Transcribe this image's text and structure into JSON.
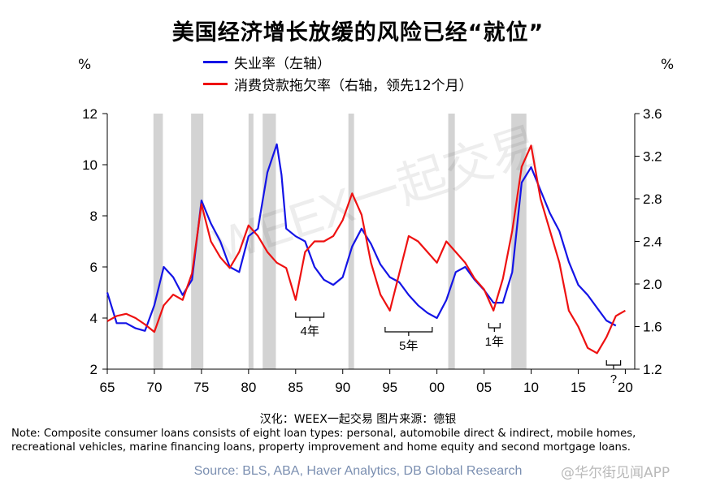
{
  "title": "美国经济增长放缓的风险已经“就位”",
  "left_unit": "%",
  "right_unit": "%",
  "credit": "汉化：WEEX一起交易   图片来源：德银",
  "note": "Note: Composite consumer loans consists of eight loan types: personal, automobile direct & indirect, mobile homes, recreational vehicles, marine financing loans, property improvement and home equity and second mortgage loans.",
  "source": "Source: BLS, ABA, Haver Analytics, DB Global Research",
  "watermark_main": "WEEX一起交易",
  "watermark_app": "@华尔街见闻APP",
  "colors": {
    "unemployment": "#1414e6",
    "delinquency": "#ee1111",
    "recession": "#d3d3d3"
  },
  "chart_data": {
    "type": "line",
    "x_ticks": [
      "65",
      "70",
      "75",
      "80",
      "85",
      "90",
      "95",
      "00",
      "05",
      "10",
      "15",
      "20"
    ],
    "xlim": [
      1965,
      2021
    ],
    "ylim_left": [
      2,
      12
    ],
    "yticks_left": [
      "2",
      "4",
      "6",
      "8",
      "10",
      "12"
    ],
    "ylim_right": [
      1.2,
      3.6
    ],
    "yticks_right": [
      "1.2",
      "1.6",
      "2.0",
      "2.4",
      "2.8",
      "3.2",
      "3.6"
    ],
    "recessions": [
      [
        1969.9,
        1970.9
      ],
      [
        1973.9,
        1975.2
      ],
      [
        1980.0,
        1980.5
      ],
      [
        1981.5,
        1982.9
      ],
      [
        1990.6,
        1991.2
      ],
      [
        2001.2,
        2001.9
      ],
      [
        2007.9,
        2009.5
      ]
    ],
    "series": [
      {
        "name": "失业率（左轴）",
        "axis": "left",
        "points": [
          [
            1965,
            5.0
          ],
          [
            1966,
            3.8
          ],
          [
            1967,
            3.8
          ],
          [
            1968,
            3.6
          ],
          [
            1969,
            3.5
          ],
          [
            1970,
            4.5
          ],
          [
            1971,
            6.0
          ],
          [
            1972,
            5.6
          ],
          [
            1973,
            4.9
          ],
          [
            1974,
            5.5
          ],
          [
            1975,
            8.6
          ],
          [
            1976,
            7.7
          ],
          [
            1977,
            7.0
          ],
          [
            1978,
            6.0
          ],
          [
            1979,
            5.8
          ],
          [
            1980,
            7.2
          ],
          [
            1981,
            7.5
          ],
          [
            1982,
            9.7
          ],
          [
            1983,
            10.8
          ],
          [
            1983.5,
            9.6
          ],
          [
            1984,
            7.5
          ],
          [
            1985,
            7.2
          ],
          [
            1986,
            7.0
          ],
          [
            1987,
            6.0
          ],
          [
            1988,
            5.5
          ],
          [
            1989,
            5.3
          ],
          [
            1990,
            5.6
          ],
          [
            1991,
            6.8
          ],
          [
            1992,
            7.5
          ],
          [
            1993,
            6.9
          ],
          [
            1994,
            6.1
          ],
          [
            1995,
            5.6
          ],
          [
            1996,
            5.4
          ],
          [
            1997,
            4.9
          ],
          [
            1998,
            4.5
          ],
          [
            1999,
            4.2
          ],
          [
            2000,
            4.0
          ],
          [
            2001,
            4.7
          ],
          [
            2002,
            5.8
          ],
          [
            2003,
            6.0
          ],
          [
            2004,
            5.5
          ],
          [
            2005,
            5.1
          ],
          [
            2006,
            4.6
          ],
          [
            2007,
            4.6
          ],
          [
            2008,
            5.8
          ],
          [
            2009,
            9.3
          ],
          [
            2010,
            9.9
          ],
          [
            2011,
            9.0
          ],
          [
            2012,
            8.1
          ],
          [
            2013,
            7.4
          ],
          [
            2014,
            6.2
          ],
          [
            2015,
            5.3
          ],
          [
            2016,
            4.9
          ],
          [
            2017,
            4.4
          ],
          [
            2018,
            3.9
          ],
          [
            2019,
            3.7
          ]
        ]
      },
      {
        "name": "消费贷款拖欠率（右轴，领先12个月）",
        "axis": "right",
        "points": [
          [
            1965,
            1.65
          ],
          [
            1966,
            1.7
          ],
          [
            1967,
            1.72
          ],
          [
            1968,
            1.68
          ],
          [
            1969,
            1.62
          ],
          [
            1970,
            1.55
          ],
          [
            1971,
            1.8
          ],
          [
            1972,
            1.9
          ],
          [
            1973,
            1.85
          ],
          [
            1974,
            2.1
          ],
          [
            1975,
            2.75
          ],
          [
            1976,
            2.4
          ],
          [
            1977,
            2.25
          ],
          [
            1978,
            2.15
          ],
          [
            1979,
            2.3
          ],
          [
            1980,
            2.55
          ],
          [
            1981,
            2.45
          ],
          [
            1982,
            2.3
          ],
          [
            1983,
            2.2
          ],
          [
            1984,
            2.15
          ],
          [
            1985,
            1.85
          ],
          [
            1986,
            2.3
          ],
          [
            1987,
            2.4
          ],
          [
            1988,
            2.4
          ],
          [
            1989,
            2.45
          ],
          [
            1990,
            2.6
          ],
          [
            1991,
            2.85
          ],
          [
            1992,
            2.65
          ],
          [
            1993,
            2.2
          ],
          [
            1994,
            1.9
          ],
          [
            1995,
            1.75
          ],
          [
            1996,
            2.1
          ],
          [
            1997,
            2.45
          ],
          [
            1998,
            2.4
          ],
          [
            1999,
            2.3
          ],
          [
            2000,
            2.2
          ],
          [
            2001,
            2.4
          ],
          [
            2002,
            2.3
          ],
          [
            2003,
            2.2
          ],
          [
            2004,
            2.05
          ],
          [
            2005,
            1.95
          ],
          [
            2006,
            1.75
          ],
          [
            2007,
            2.05
          ],
          [
            2008,
            2.5
          ],
          [
            2009,
            3.1
          ],
          [
            2010,
            3.3
          ],
          [
            2011,
            2.8
          ],
          [
            2012,
            2.5
          ],
          [
            2013,
            2.2
          ],
          [
            2014,
            1.75
          ],
          [
            2015,
            1.6
          ],
          [
            2016,
            1.4
          ],
          [
            2017,
            1.35
          ],
          [
            2018,
            1.5
          ],
          [
            2019,
            1.7
          ],
          [
            2020,
            1.75
          ]
        ]
      }
    ],
    "annotations": [
      {
        "label": "4年",
        "x": [
          1985,
          1988
        ]
      },
      {
        "label": "5年",
        "x": [
          1994.5,
          1999.5
        ]
      },
      {
        "label": "1年",
        "x": [
          2005.5,
          2006.7
        ]
      },
      {
        "label": "?",
        "x": [
          2018,
          2019.5
        ]
      }
    ]
  }
}
